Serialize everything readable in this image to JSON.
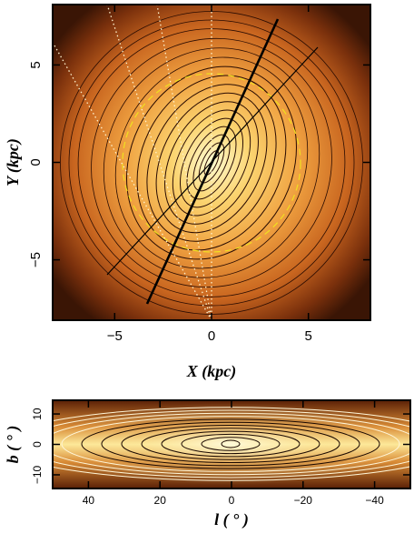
{
  "chart_data": [
    {
      "type": "contour",
      "xlabel": "X (kpc)",
      "ylabel": "Y (kpc)",
      "xlim": [
        -8.2,
        8.2
      ],
      "ylim": [
        -8.1,
        8.1
      ],
      "xticks": [
        {
          "value": -5,
          "label": "−5"
        },
        0,
        5
      ],
      "yticks": [
        {
          "value": -5,
          "label": "−5"
        },
        0,
        5
      ]
    },
    {
      "type": "contour",
      "xlabel": "l ( ° )",
      "ylabel": "b ( ° )",
      "xlim": [
        50,
        -50
      ],
      "ylim": [
        -14.5,
        14.5
      ],
      "xticks": [
        40,
        20,
        0,
        {
          "value": -20,
          "label": "−20"
        },
        {
          "value": -40,
          "label": "−40"
        }
      ],
      "yticks": [
        {
          "value": -10,
          "label": "−10"
        },
        0,
        10
      ]
    }
  ]
}
